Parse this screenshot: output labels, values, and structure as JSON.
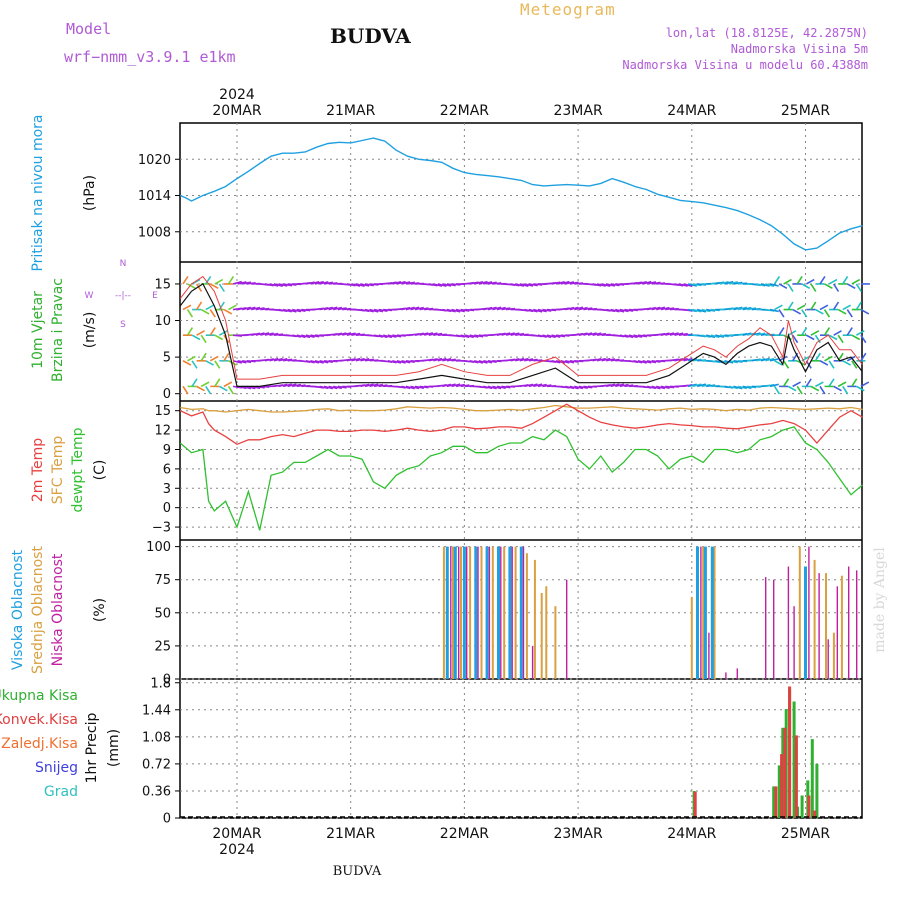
{
  "header": {
    "model_label": "Model",
    "model_name": "wrf−nmm_v3.9.1  e1km",
    "title": "BUDVA",
    "meteogram_label": "Meteogram",
    "lonlat": "lon,lat (18.8125E, 42.2875N)",
    "elevation": "Nadmorska Visina 5m",
    "model_elevation": "Nadmorska Visina u modelu 60.4388m",
    "footer_city": "BUDVA",
    "watermark": "made by Angel"
  },
  "colors": {
    "pressure": "#1fa0e0",
    "temp2m": "#e84040",
    "sfc_temp": "#d9a040",
    "dewpoint": "#30c030",
    "high_cloud": "#20a0e0",
    "mid_cloud": "#d9a040",
    "low_cloud": "#c020a0",
    "total_precip": "#30b030",
    "conv_precip": "#e04040",
    "frozen_precip": "#f07030",
    "snow": "#4040e0",
    "hail": "#30c0c0",
    "wind_speed_line": "#111111",
    "wind_gust": "#e84040"
  },
  "time_axis": {
    "year_top": "2024",
    "year_bottom": "2024",
    "labels": [
      "20MAR",
      "21MAR",
      "22MAR",
      "23MAR",
      "24MAR",
      "25MAR"
    ]
  },
  "chart_data": [
    {
      "type": "line",
      "id": "pressure",
      "ylabel": "Pritisak na nivou mora",
      "unit": "(hPa)",
      "yticks": [
        "1020",
        "1014",
        "1008"
      ],
      "ylim": [
        1003,
        1026
      ],
      "x_days": [
        -0.5,
        -0.45,
        -0.4,
        -0.3,
        -0.2,
        -0.1,
        0,
        0.1,
        0.2,
        0.3,
        0.4,
        0.5,
        0.6,
        0.7,
        0.8,
        0.9,
        1,
        1.1,
        1.2,
        1.3,
        1.4,
        1.5,
        1.6,
        1.7,
        1.8,
        1.9,
        2,
        2.1,
        2.2,
        2.3,
        2.4,
        2.5,
        2.6,
        2.7,
        2.8,
        2.9,
        3,
        3.1,
        3.2,
        3.3,
        3.4,
        3.5,
        3.6,
        3.7,
        3.8,
        3.9,
        4,
        4.1,
        4.2,
        4.3,
        4.4,
        4.5,
        4.6,
        4.7,
        4.8,
        4.9,
        5,
        5.1,
        5.2,
        5.3,
        5.4,
        5.5
      ],
      "values": [
        1014,
        1013.6,
        1013.1,
        1014,
        1014.7,
        1015.5,
        1016.8,
        1018,
        1019.3,
        1020.5,
        1021,
        1021,
        1021.2,
        1022,
        1022.6,
        1022.8,
        1022.7,
        1023.1,
        1023.5,
        1023,
        1021.5,
        1020.5,
        1020,
        1019.8,
        1019.5,
        1018.5,
        1017.8,
        1017.5,
        1017.3,
        1017.1,
        1016.8,
        1016.5,
        1015.8,
        1015.6,
        1015.7,
        1015.8,
        1015.7,
        1015.6,
        1016,
        1016.8,
        1016.2,
        1015.5,
        1015,
        1014.2,
        1013.7,
        1013.2,
        1013,
        1012.8,
        1012.4,
        1012,
        1011.5,
        1010.8,
        1010,
        1009,
        1007.6,
        1006,
        1005,
        1005.3,
        1006.5,
        1007.8,
        1008.5,
        1009
      ]
    },
    {
      "type": "line",
      "id": "wind",
      "ylabel": "10m Vjetar",
      "ylabel2": "Brzina i Pravac",
      "unit": "(m/s)",
      "compass_n": "N",
      "compass_s": "S",
      "compass_e": "E",
      "compass_w": "W",
      "compass_axis": "--|--",
      "yticks": [
        "15",
        "10",
        "5",
        "0"
      ],
      "ylim": [
        -1,
        18
      ],
      "x_days": [
        -0.5,
        -0.4,
        -0.3,
        -0.2,
        -0.1,
        0,
        0.2,
        0.4,
        0.6,
        0.8,
        1,
        1.2,
        1.4,
        1.6,
        1.8,
        2,
        2.2,
        2.4,
        2.6,
        2.8,
        3,
        3.2,
        3.4,
        3.6,
        3.8,
        3.9,
        4,
        4.1,
        4.2,
        4.3,
        4.4,
        4.5,
        4.6,
        4.7,
        4.8,
        4.85,
        4.9,
        5,
        5.1,
        5.2,
        5.3,
        5.4,
        5.5
      ],
      "speed": [
        12,
        14,
        15,
        12,
        8,
        1,
        1,
        1.5,
        1.5,
        1.5,
        1.5,
        1.5,
        1.5,
        2,
        2.5,
        2,
        1.5,
        1.5,
        2.5,
        3.5,
        1.5,
        1.5,
        1.5,
        1.5,
        2.5,
        3.5,
        4.5,
        5.5,
        5,
        4,
        5.5,
        6.5,
        7,
        6.5,
        4,
        8,
        6,
        3,
        6,
        7,
        4.5,
        5,
        3
      ],
      "gust": [
        13,
        15,
        16,
        14,
        10,
        2,
        2,
        2.5,
        2.5,
        2.5,
        2.5,
        2.5,
        2.5,
        3,
        4,
        3,
        2.5,
        2.5,
        4,
        5,
        2.5,
        2.5,
        2.5,
        2.5,
        3.5,
        4.5,
        5.5,
        6.5,
        6,
        5,
        6.5,
        7.5,
        9,
        8,
        5,
        10,
        7,
        4,
        7,
        8,
        6,
        6,
        4
      ]
    },
    {
      "type": "line",
      "id": "temperature",
      "series_names": [
        "2m Temp",
        "SFC Temp",
        "dewpt Temp"
      ],
      "unit": "(C)",
      "yticks": [
        "15",
        "12",
        "9",
        "6",
        "3",
        "0",
        "−3"
      ],
      "ylim": [
        -5,
        16.5
      ],
      "x_days": [
        -0.5,
        -0.4,
        -0.3,
        -0.25,
        -0.2,
        -0.1,
        0,
        0.1,
        0.2,
        0.3,
        0.4,
        0.5,
        0.6,
        0.7,
        0.8,
        0.9,
        1,
        1.1,
        1.2,
        1.3,
        1.4,
        1.5,
        1.6,
        1.7,
        1.8,
        1.9,
        2,
        2.1,
        2.2,
        2.3,
        2.4,
        2.5,
        2.6,
        2.7,
        2.8,
        2.9,
        3,
        3.1,
        3.2,
        3.3,
        3.4,
        3.5,
        3.6,
        3.7,
        3.8,
        3.9,
        4,
        4.1,
        4.2,
        4.3,
        4.4,
        4.5,
        4.6,
        4.7,
        4.8,
        4.9,
        5,
        5.1,
        5.2,
        5.3,
        5.4,
        5.5
      ],
      "temp2m": [
        15,
        14.2,
        14.8,
        13,
        12,
        11,
        9.8,
        10.5,
        10.5,
        11,
        11.3,
        11,
        11.5,
        12,
        12,
        11.8,
        11.8,
        12,
        12,
        11.8,
        12,
        12.3,
        12,
        11.8,
        12,
        12.5,
        12.5,
        12.2,
        12.3,
        12.5,
        12.5,
        12.3,
        13,
        14,
        15,
        16,
        15,
        14,
        13.2,
        12.8,
        12.5,
        12.3,
        12.5,
        12.8,
        13,
        12.8,
        12.7,
        12.5,
        12.5,
        12.3,
        12.2,
        12.5,
        12.8,
        13,
        13.5,
        13,
        12,
        10,
        12,
        14,
        15,
        14
      ],
      "sfc_temp": [
        15.5,
        15.2,
        15.3,
        15,
        15,
        14.8,
        15,
        15.2,
        15,
        14.8,
        14.8,
        14.9,
        15,
        15.2,
        15.3,
        15,
        15.1,
        15,
        15,
        15.1,
        15.3,
        15.6,
        15.5,
        15.4,
        15.5,
        15.4,
        15.2,
        15,
        15,
        15.1,
        15.2,
        15.1,
        15.3,
        15.5,
        15.8,
        15.6,
        15.4,
        15.4,
        15.5,
        15.6,
        15.4,
        15.3,
        15.2,
        15.1,
        15.3,
        15.4,
        15.2,
        15.3,
        15.2,
        15,
        15.2,
        15.1,
        15.4,
        15.5,
        15.4,
        15.3,
        15.2,
        15.3,
        15.4,
        15.3,
        15.5,
        15.2
      ],
      "dewpoint": [
        10,
        8.5,
        9,
        1,
        -0.5,
        1,
        -3,
        2.5,
        -3.5,
        5,
        5.5,
        7,
        7,
        8,
        9,
        8,
        8,
        7.5,
        4,
        3,
        5,
        6,
        6.5,
        8,
        8.5,
        9.5,
        9.5,
        8.5,
        8.5,
        9.5,
        10,
        10,
        11,
        10.5,
        12,
        11,
        7.5,
        6,
        8,
        5.5,
        7,
        9,
        9,
        8,
        6,
        7.5,
        8,
        7,
        9,
        9,
        8.5,
        9,
        10.5,
        11,
        12,
        12.5,
        10,
        9,
        7,
        4.5,
        2,
        3.5
      ]
    },
    {
      "type": "bar",
      "id": "clouds",
      "series_names": [
        "Visoka Oblacnost",
        "Srednja Oblacnost",
        "Niska Oblacnost"
      ],
      "unit": "(%)",
      "yticks": [
        "100",
        "75",
        "50",
        "25",
        "0"
      ],
      "ylim": [
        0,
        105
      ],
      "high": [
        [
          1.85,
          100
        ],
        [
          1.92,
          100
        ],
        [
          2.0,
          100
        ],
        [
          2.1,
          100
        ],
        [
          2.2,
          100
        ],
        [
          2.3,
          100
        ],
        [
          2.4,
          100
        ],
        [
          2.5,
          100
        ],
        [
          4.05,
          100
        ],
        [
          4.12,
          100
        ],
        [
          4.18,
          100
        ],
        [
          5.0,
          85
        ]
      ],
      "mid": [
        [
          1.82,
          100
        ],
        [
          1.9,
          100
        ],
        [
          1.97,
          100
        ],
        [
          2.05,
          100
        ],
        [
          2.15,
          100
        ],
        [
          2.25,
          100
        ],
        [
          2.35,
          100
        ],
        [
          2.45,
          100
        ],
        [
          2.55,
          95
        ],
        [
          2.62,
          90
        ],
        [
          2.68,
          65
        ],
        [
          2.72,
          70
        ],
        [
          2.8,
          55
        ],
        [
          4.0,
          62
        ],
        [
          4.1,
          100
        ],
        [
          4.2,
          100
        ],
        [
          4.95,
          100
        ],
        [
          5.08,
          90
        ],
        [
          5.18,
          80
        ],
        [
          5.25,
          35
        ],
        [
          5.32,
          78
        ]
      ],
      "low": [
        [
          1.88,
          100
        ],
        [
          1.95,
          100
        ],
        [
          2.02,
          100
        ],
        [
          2.12,
          100
        ],
        [
          2.22,
          100
        ],
        [
          2.32,
          100
        ],
        [
          2.42,
          100
        ],
        [
          2.52,
          100
        ],
        [
          2.6,
          25
        ],
        [
          2.9,
          75
        ],
        [
          4.08,
          100
        ],
        [
          4.15,
          35
        ],
        [
          4.3,
          5
        ],
        [
          4.4,
          8
        ],
        [
          4.65,
          77
        ],
        [
          4.72,
          75
        ],
        [
          4.85,
          85
        ],
        [
          4.9,
          55
        ],
        [
          5.03,
          100
        ],
        [
          5.12,
          80
        ],
        [
          5.2,
          30
        ],
        [
          5.28,
          70
        ],
        [
          5.38,
          85
        ],
        [
          5.45,
          82
        ]
      ]
    },
    {
      "type": "bar",
      "id": "precip",
      "series_names": [
        "Ukupna Kisa",
        "Konvek.Kisa",
        "Zaledj.Kisa",
        "Snijeg",
        "Grad"
      ],
      "ylabel": "1hr Precip",
      "unit": "(mm)",
      "yticks": [
        "1.8",
        "1.44",
        "1.08",
        "0.72",
        "0.36",
        "0"
      ],
      "ylim": [
        0,
        1.85
      ],
      "total": [
        [
          4.02,
          0.36
        ],
        [
          4.72,
          0.42
        ],
        [
          4.77,
          0.7
        ],
        [
          4.8,
          1.2
        ],
        [
          4.83,
          1.45
        ],
        [
          4.86,
          1.72
        ],
        [
          4.9,
          1.55
        ],
        [
          4.93,
          0.15
        ],
        [
          4.97,
          0.3
        ],
        [
          5.02,
          0.5
        ],
        [
          5.06,
          1.05
        ],
        [
          5.1,
          0.72
        ]
      ],
      "convective": [
        [
          4.03,
          0.35
        ],
        [
          4.74,
          0.42
        ],
        [
          4.79,
          0.85
        ],
        [
          4.82,
          1.2
        ],
        [
          4.86,
          1.75
        ],
        [
          4.92,
          1.1
        ],
        [
          5.03,
          0.3
        ],
        [
          5.08,
          0.1
        ]
      ]
    }
  ]
}
